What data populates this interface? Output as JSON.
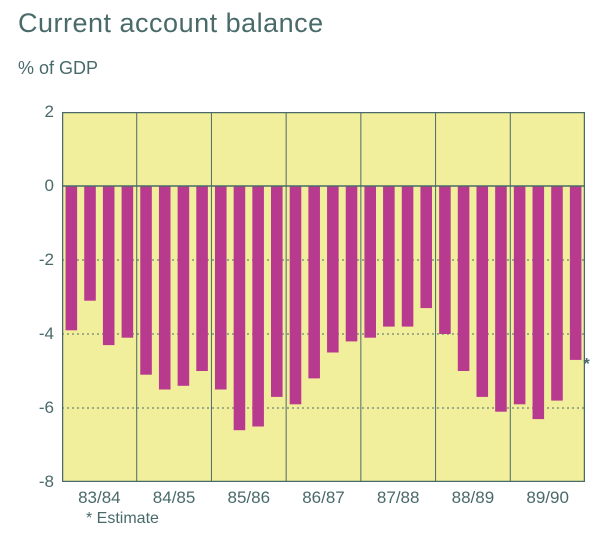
{
  "chart": {
    "type": "bar",
    "title": "Current account balance",
    "ylabel": "% of GDP",
    "title_fontsize": 27,
    "ylabel_fontsize": 18,
    "tick_fontsize": 17,
    "title_color": "#4a6a6a",
    "text_color": "#4a6a6a",
    "plot_background": "#f2ef9c",
    "panel_border_color": "#4a6a6a",
    "gridline_color": "#4a6a6a",
    "gridline_dash": "2,3",
    "bar_color": "#b83a8e",
    "bar_width": 0.62,
    "ylim": [
      -8,
      2
    ],
    "ytick_step": 2,
    "yticks": [
      2,
      0,
      -2,
      -4,
      -6,
      -8
    ],
    "x_groups": [
      "83/84",
      "84/85",
      "85/86",
      "86/87",
      "87/88",
      "88/89",
      "89/90"
    ],
    "values": [
      -3.9,
      -3.1,
      -4.3,
      -4.1,
      -5.1,
      -5.5,
      -5.4,
      -5.0,
      -5.5,
      -6.6,
      -6.5,
      -5.7,
      -5.9,
      -5.2,
      -4.5,
      -4.2,
      -4.1,
      -3.8,
      -3.8,
      -3.3,
      -4.0,
      -5.0,
      -5.7,
      -6.1,
      -5.9,
      -6.3,
      -5.8,
      -4.7
    ],
    "estimate_symbol": "*",
    "footnote": "* Estimate"
  }
}
